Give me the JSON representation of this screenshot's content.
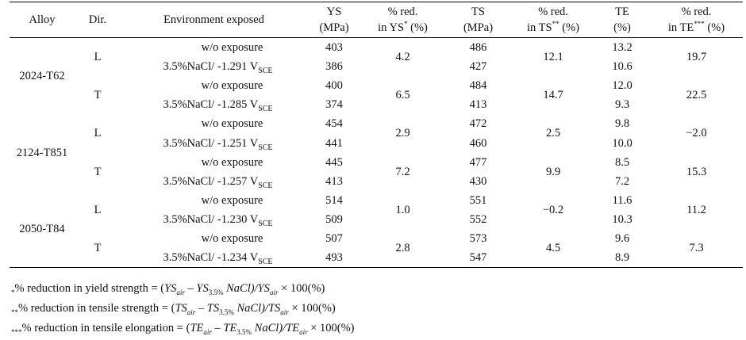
{
  "headers": {
    "alloy": "Alloy",
    "dir": "Dir.",
    "env": "Environment exposed",
    "ys_1": "YS",
    "ys_2": "(MPa)",
    "red_ys_1": "% red.",
    "red_ys_2": "in YS",
    "red_ys_sup": "*",
    "red_ys_3": " (%)",
    "ts_1": "TS",
    "ts_2": "(MPa)",
    "red_ts_1": "% red.",
    "red_ts_2": "in TS",
    "red_ts_sup": "**",
    "red_ts_3": " (%)",
    "te_1": "TE",
    "te_2": "(%)",
    "red_te_1": "% red.",
    "red_te_2": "in TE",
    "red_te_sup": "***",
    "red_te_3": " (%)"
  },
  "units": {
    "vsce_main": "V",
    "vsce_sub": "SCE"
  },
  "alloys": [
    {
      "name": "2024-T62",
      "dirs": [
        {
          "dir": "L",
          "red_ys": "4.2",
          "red_ts": "12.1",
          "red_te": "19.7",
          "rows": [
            {
              "env": "w/o exposure",
              "ys": "403",
              "ts": "486",
              "te": "13.2"
            },
            {
              "env": "3.5%NaCl/ -1.291 ",
              "ys": "386",
              "ts": "427",
              "te": "10.6"
            }
          ]
        },
        {
          "dir": "T",
          "red_ys": "6.5",
          "red_ts": "14.7",
          "red_te": "22.5",
          "rows": [
            {
              "env": "w/o exposure",
              "ys": "400",
              "ts": "484",
              "te": "12.0"
            },
            {
              "env": "3.5%NaCl/ -1.285 ",
              "ys": "374",
              "ts": "413",
              "te": "9.3"
            }
          ]
        }
      ]
    },
    {
      "name": "2124-T851",
      "dirs": [
        {
          "dir": "L",
          "red_ys": "2.9",
          "red_ts": "2.5",
          "red_te": "−2.0",
          "rows": [
            {
              "env": "w/o exposure",
              "ys": "454",
              "ts": "472",
              "te": "9.8"
            },
            {
              "env": "3.5%NaCl/ -1.251 ",
              "ys": "441",
              "ts": "460",
              "te": "10.0"
            }
          ]
        },
        {
          "dir": "T",
          "red_ys": "7.2",
          "red_ts": "9.9",
          "red_te": "15.3",
          "rows": [
            {
              "env": "w/o exposure",
              "ys": "445",
              "ts": "477",
              "te": "8.5"
            },
            {
              "env": "3.5%NaCl/ -1.257 ",
              "ys": "413",
              "ts": "430",
              "te": "7.2"
            }
          ]
        }
      ]
    },
    {
      "name": "2050-T84",
      "dirs": [
        {
          "dir": "L",
          "red_ys": "1.0",
          "red_ts": "−0.2",
          "red_te": "11.2",
          "rows": [
            {
              "env": "w/o exposure",
              "ys": "514",
              "ts": "551",
              "te": "11.6"
            },
            {
              "env": "3.5%NaCl/ -1.230 ",
              "ys": "509",
              "ts": "552",
              "te": "10.3"
            }
          ]
        },
        {
          "dir": "T",
          "red_ys": "2.8",
          "red_ts": "4.5",
          "red_te": "7.3",
          "rows": [
            {
              "env": "w/o exposure",
              "ys": "507",
              "ts": "573",
              "te": "9.6"
            },
            {
              "env": "3.5%NaCl/ -1.234 ",
              "ys": "493",
              "ts": "547",
              "te": "8.9"
            }
          ]
        }
      ]
    }
  ],
  "notes": [
    {
      "mark": "*",
      "text": "% reduction in yield strength = (",
      "a": "YS",
      "a_sub": "air",
      "b": "YS",
      "b_sub": "3.5%",
      "mid": " NaCl)/",
      "c": "YS",
      "c_sub": "air",
      "tail": "× 100(%)"
    },
    {
      "mark": "**",
      "text": "% reduction in tensile strength = (",
      "a": "TS",
      "a_sub": "air",
      "b": "TS",
      "b_sub": "3.5%",
      "mid": " NaCl)/",
      "c": "TS",
      "c_sub": "air",
      "tail": "× 100(%)"
    },
    {
      "mark": "***",
      "text": "% reduction in tensile elongation = (",
      "a": "TE",
      "a_sub": "air",
      "b": "TE",
      "b_sub": "3.5%",
      "mid": " NaCl)/",
      "c": "TE",
      "c_sub": "air",
      "tail": "× 100(%)"
    }
  ]
}
